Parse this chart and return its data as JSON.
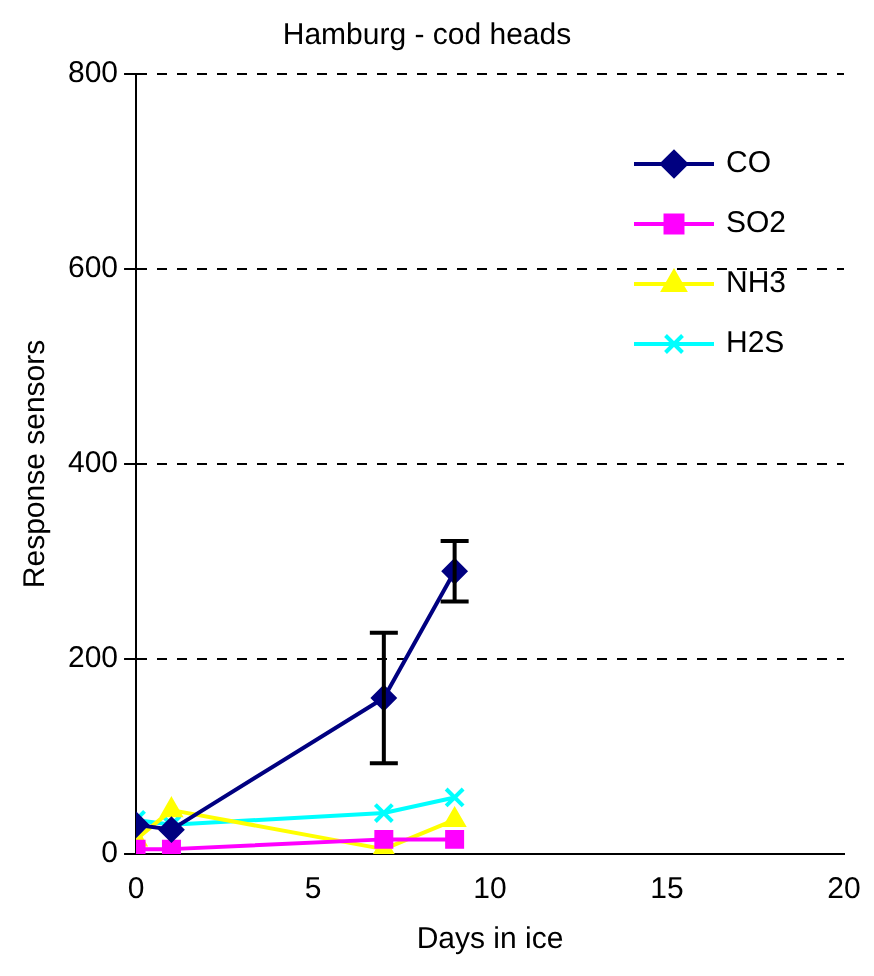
{
  "chart_data": {
    "type": "line",
    "title": "Hamburg - cod heads",
    "xlabel": "Days in ice",
    "ylabel": "Response sensors",
    "x": [
      0,
      1,
      7,
      9
    ],
    "xlim": [
      0,
      20
    ],
    "xticks": [
      0,
      5,
      10,
      15,
      20
    ],
    "ylim": [
      0,
      800
    ],
    "yticks": [
      0,
      200,
      400,
      600,
      800
    ],
    "grid": "y",
    "legend": "top right",
    "line_style": "solid",
    "series": [
      {
        "name": "CO",
        "color": "#000080",
        "marker": "diamond",
        "values": [
          30,
          25,
          160,
          290
        ],
        "errors": [
          null,
          null,
          67,
          31
        ]
      },
      {
        "name": "SO2",
        "color": "#ff00ff",
        "marker": "square",
        "values": [
          5,
          5,
          15,
          15
        ]
      },
      {
        "name": "NH3",
        "color": "#ffff00",
        "marker": "triangle",
        "values": [
          15,
          45,
          5,
          35
        ]
      },
      {
        "name": "H2S",
        "color": "#00ffff",
        "marker": "cross",
        "values": [
          35,
          30,
          42,
          58
        ]
      }
    ]
  }
}
